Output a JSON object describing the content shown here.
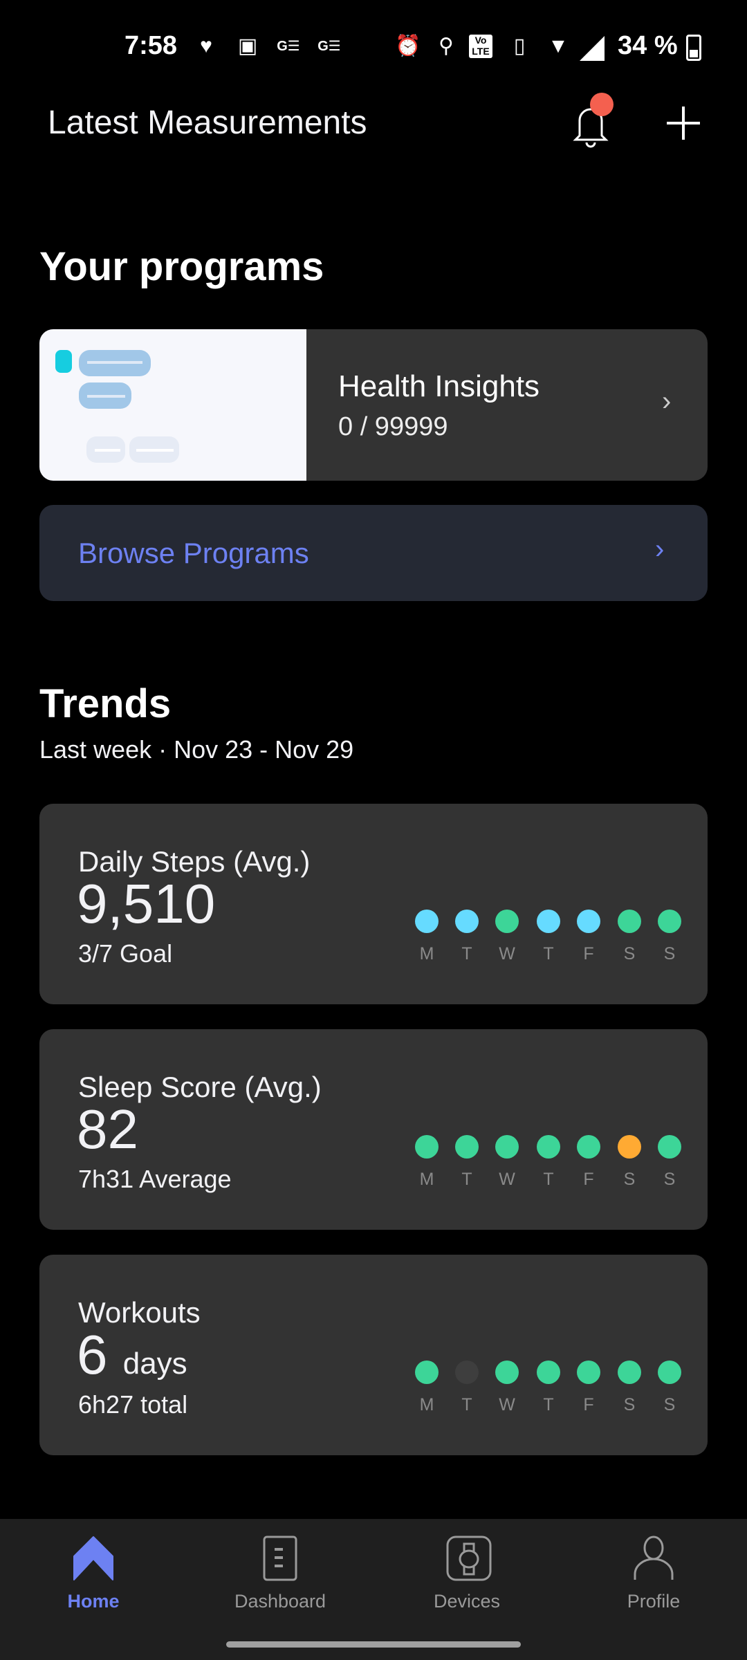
{
  "status_bar": {
    "time": "7:58",
    "battery": "34 %",
    "battery_level": 34,
    "icons": [
      "heart-icon",
      "image-icon",
      "news-icon",
      "news-icon",
      "alarm-icon",
      "location-icon",
      "volte-icon",
      "vibrate-icon",
      "wifi-icon",
      "signal-icon",
      "battery-icon"
    ]
  },
  "header": {
    "title": "Latest Measurements",
    "notification_badge_color": "#f4604f"
  },
  "programs": {
    "title": "Your programs",
    "card": {
      "name": "Health Insights",
      "progress": "0 / 99999"
    },
    "browse_label": "Browse Programs",
    "accent": "#6d81f2"
  },
  "trends": {
    "title": "Trends",
    "subtitle": "Last week · Nov 23 - Nov 29",
    "days": [
      "M",
      "T",
      "W",
      "T",
      "F",
      "S",
      "S"
    ],
    "colors": {
      "blue": "#66dbff",
      "green": "#3dd598",
      "orange": "#ffaa33",
      "empty": "#3e3e3e"
    },
    "cards": [
      {
        "title": "Daily Steps (Avg.)",
        "value": "9,510",
        "unit": "",
        "sub": "3/7 Goal",
        "dots": [
          "blue",
          "blue",
          "green",
          "blue",
          "blue",
          "green",
          "green"
        ]
      },
      {
        "title": "Sleep Score (Avg.)",
        "value": "82",
        "unit": "",
        "sub": "7h31 Average",
        "dots": [
          "green",
          "green",
          "green",
          "green",
          "green",
          "orange",
          "green"
        ]
      },
      {
        "title": "Workouts",
        "value": "6",
        "unit": "days",
        "sub": "6h27 total",
        "dots": [
          "green",
          "empty",
          "green",
          "green",
          "green",
          "green",
          "green"
        ]
      }
    ]
  },
  "nav": {
    "items": [
      {
        "label": "Home",
        "active": true
      },
      {
        "label": "Dashboard"
      },
      {
        "label": "Devices"
      },
      {
        "label": "Profile"
      }
    ],
    "active_color": "#6d81f2"
  }
}
